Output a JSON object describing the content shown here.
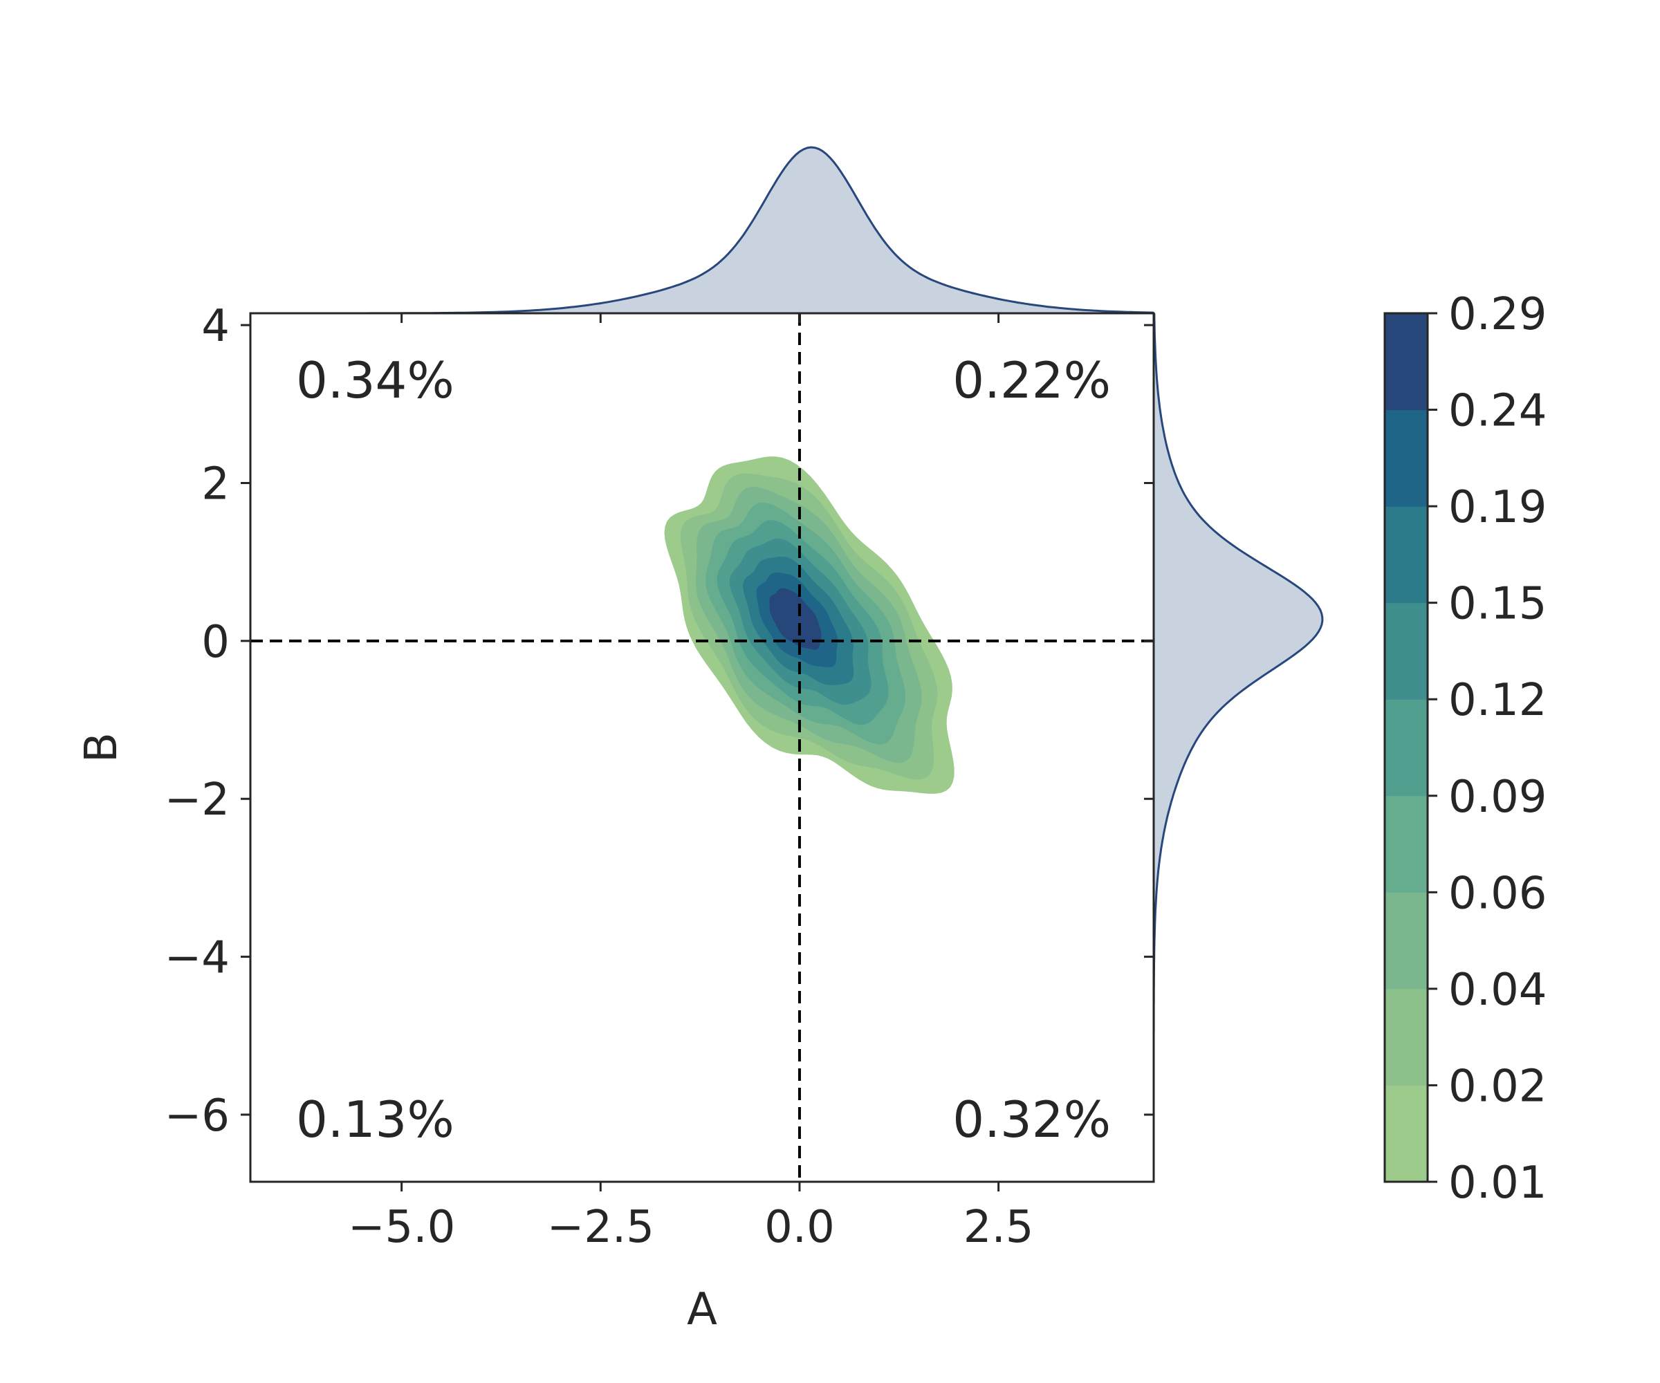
{
  "chart_data": {
    "type": "joint-kde",
    "xlabel": "A",
    "ylabel": "B",
    "xlim": [
      -6.9,
      4.45
    ],
    "ylim": [
      -6.85,
      4.15
    ],
    "x_ticks": [
      -5.0,
      -2.5,
      0.0,
      2.5
    ],
    "x_tick_labels": [
      "−5.0",
      "−2.5",
      "0.0",
      "2.5"
    ],
    "y_ticks": [
      4,
      2,
      0,
      -2,
      -4,
      -6
    ],
    "y_tick_labels": [
      "4",
      "2",
      "0",
      "−2",
      "−4",
      "−6"
    ],
    "reference_lines": {
      "x": 0,
      "y": 0,
      "style": "dashed"
    },
    "quadrant_annotations": [
      {
        "quadrant": "top-left",
        "text": "0.34%"
      },
      {
        "quadrant": "top-right",
        "text": "0.22%"
      },
      {
        "quadrant": "bottom-left",
        "text": "0.13%"
      },
      {
        "quadrant": "bottom-right",
        "text": "0.32%"
      }
    ],
    "density": {
      "levels": [
        0.01,
        0.02,
        0.04,
        0.06,
        0.09,
        0.12,
        0.15,
        0.19,
        0.24,
        0.29
      ],
      "level_labels": [
        "0.01",
        "0.02",
        "0.04",
        "0.06",
        "0.09",
        "0.12",
        "0.15",
        "0.19",
        "0.24",
        "0.29"
      ],
      "colors": [
        "#9ccb8c",
        "#8cc18c",
        "#7bb78e",
        "#66ad8f",
        "#51a08f",
        "#3e8f8e",
        "#2b7b8b",
        "#1f6588",
        "#274679"
      ],
      "peak": [
        0.15,
        0.15
      ],
      "main_axis_direction": [
        0.6,
        -0.8
      ],
      "spread_along": 2.4,
      "spread_across": 1.3
    },
    "marginal_x": {
      "peak_at": 0.15,
      "fill": "#c9d3e0",
      "line": "#28477c"
    },
    "marginal_y": {
      "peak_at": 0.3,
      "fill": "#c9d3e0",
      "line": "#28477c"
    },
    "colorbar": {
      "position": "right"
    }
  }
}
